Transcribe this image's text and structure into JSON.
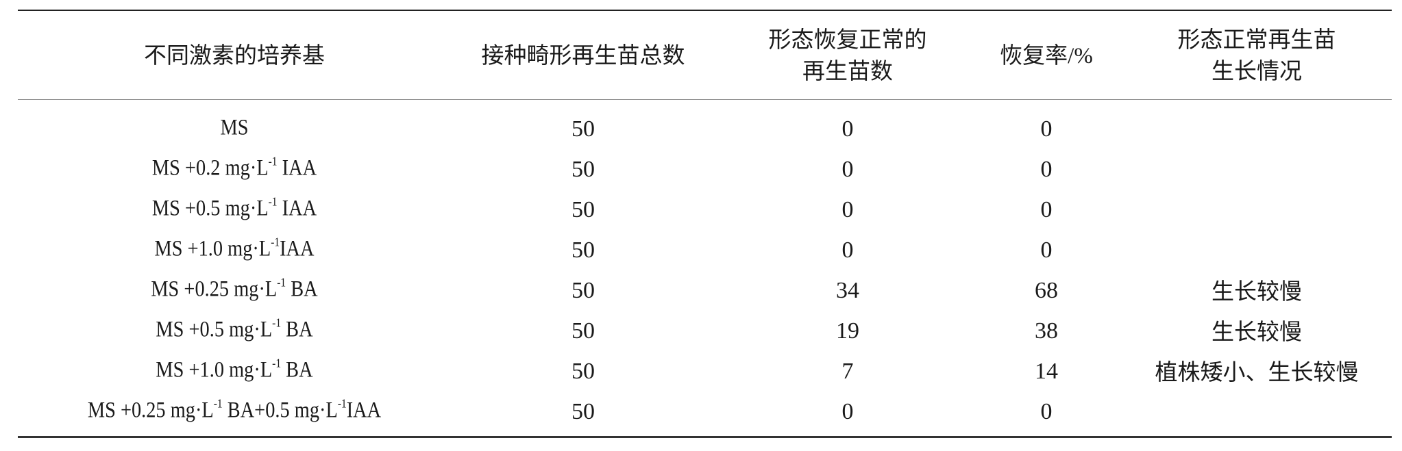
{
  "table": {
    "headers": [
      {
        "lines": [
          "不同激素的培养基"
        ]
      },
      {
        "lines": [
          "接种畸形再生苗总数"
        ]
      },
      {
        "lines": [
          "形态恢复正常的",
          "再生苗数"
        ]
      },
      {
        "lines": [
          "恢复率/%"
        ]
      },
      {
        "lines": [
          "形态正常再生苗",
          "生长情况"
        ]
      }
    ],
    "rows": [
      {
        "medium": [
          {
            "t": "MS"
          }
        ],
        "total": "50",
        "normal": "0",
        "rate": "0",
        "growth": ""
      },
      {
        "medium": [
          {
            "t": "MS +0.2 mg·L"
          },
          {
            "sup": "-1"
          },
          {
            "t": " IAA"
          }
        ],
        "total": "50",
        "normal": "0",
        "rate": "0",
        "growth": ""
      },
      {
        "medium": [
          {
            "t": "MS +0.5 mg·L"
          },
          {
            "sup": "-1"
          },
          {
            "t": " IAA"
          }
        ],
        "total": "50",
        "normal": "0",
        "rate": "0",
        "growth": ""
      },
      {
        "medium": [
          {
            "t": "MS +1.0 mg·L"
          },
          {
            "sup": "-1"
          },
          {
            "t": "IAA"
          }
        ],
        "total": "50",
        "normal": "0",
        "rate": "0",
        "growth": ""
      },
      {
        "medium": [
          {
            "t": "MS +0.25 mg·L"
          },
          {
            "sup": "-1"
          },
          {
            "t": " BA"
          }
        ],
        "total": "50",
        "normal": "34",
        "rate": "68",
        "growth": "生长较慢"
      },
      {
        "medium": [
          {
            "t": "MS +0.5 mg·L"
          },
          {
            "sup": "-1"
          },
          {
            "t": " BA"
          }
        ],
        "total": "50",
        "normal": "19",
        "rate": "38",
        "growth": "生长较慢"
      },
      {
        "medium": [
          {
            "t": "MS +1.0 mg·L"
          },
          {
            "sup": "-1"
          },
          {
            "t": " BA"
          }
        ],
        "total": "50",
        "normal": "7",
        "rate": "14",
        "growth": "植株矮小、生长较慢"
      },
      {
        "medium": [
          {
            "t": "MS +0.25 mg·L"
          },
          {
            "sup": "-1"
          },
          {
            "t": " BA+0.5 mg·L"
          },
          {
            "sup": "-1"
          },
          {
            "t": "IAA"
          }
        ],
        "total": "50",
        "normal": "0",
        "rate": "0",
        "growth": ""
      }
    ]
  }
}
